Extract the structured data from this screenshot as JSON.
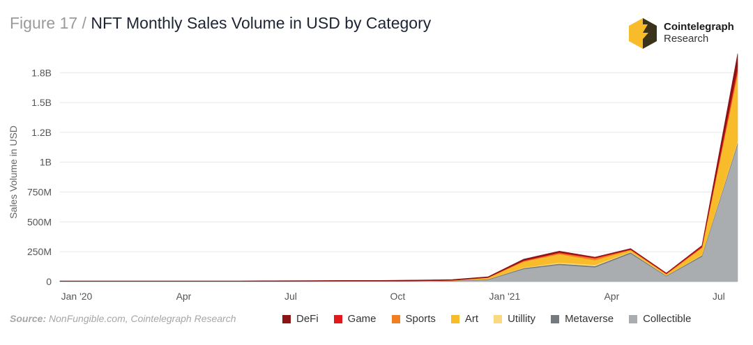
{
  "title": {
    "prefix": "Figure 17 / ",
    "text": "NFT Monthly Sales Volume in USD by Category"
  },
  "brand": {
    "name": "Cointelegraph",
    "sub": "Research"
  },
  "source": {
    "label": "Source:",
    "text": " NonFungible.com, Cointelegraph Research"
  },
  "colors": {
    "DeFi": "#8b1414",
    "Game": "#e3181d",
    "Sports": "#f07f24",
    "Art": "#f8bb2a",
    "Utility": "#fbd981",
    "Metaverse": "#737b80",
    "Collectible": "#a9adb0"
  },
  "chart_data": {
    "type": "area",
    "stacked": true,
    "ylabel": "Sales Volume in USD",
    "ylim": [
      0,
      1950000000
    ],
    "yticks": [
      0,
      250000000,
      500000000,
      750000000,
      1000000000,
      1250000000,
      1500000000,
      1750000000
    ],
    "ytick_labels": [
      "0",
      "250M",
      "500M",
      "750M",
      "1B",
      "1.2B",
      "1.5B",
      "1.8B"
    ],
    "x": [
      "2020-01",
      "2020-02",
      "2020-03",
      "2020-04",
      "2020-05",
      "2020-06",
      "2020-07",
      "2020-08",
      "2020-09",
      "2020-10",
      "2020-11",
      "2020-12",
      "2021-01",
      "2021-02",
      "2021-03",
      "2021-04",
      "2021-05",
      "2021-06",
      "2021-07",
      "2021-08"
    ],
    "xticks": [
      {
        "x": "2020-01",
        "label": "Jan '20"
      },
      {
        "x": "2020-04",
        "label": "Apr"
      },
      {
        "x": "2020-07",
        "label": "Jul"
      },
      {
        "x": "2020-10",
        "label": "Oct"
      },
      {
        "x": "2021-01",
        "label": "Jan '21"
      },
      {
        "x": "2021-04",
        "label": "Apr"
      },
      {
        "x": "2021-07",
        "label": "Jul"
      }
    ],
    "grid": true,
    "legend": "bottom",
    "series": [
      {
        "name": "Collectible",
        "values": [
          1000000,
          1000000,
          1000000,
          1000000,
          1000000,
          1000000,
          1000000,
          1000000,
          2000000,
          2000000,
          3000000,
          5000000,
          15000000,
          105000000,
          140000000,
          120000000,
          235000000,
          45000000,
          210000000,
          1150000000
        ]
      },
      {
        "name": "Metaverse",
        "values": [
          1000000,
          1000000,
          1000000,
          1000000,
          1000000,
          1000000,
          1000000,
          2000000,
          2000000,
          2000000,
          2000000,
          3000000,
          5000000,
          8000000,
          10000000,
          10000000,
          10000000,
          5000000,
          10000000,
          15000000
        ]
      },
      {
        "name": "Utillity",
        "values": [
          0,
          0,
          0,
          0,
          0,
          0,
          0,
          0,
          0,
          0,
          0,
          0,
          2000000,
          5000000,
          10000000,
          10000000,
          5000000,
          3000000,
          5000000,
          15000000
        ]
      },
      {
        "name": "Art",
        "values": [
          0,
          0,
          0,
          0,
          0,
          0,
          0,
          0,
          0,
          0,
          1000000,
          2000000,
          10000000,
          50000000,
          70000000,
          40000000,
          15000000,
          10000000,
          60000000,
          560000000
        ]
      },
      {
        "name": "Sports",
        "values": [
          0,
          0,
          0,
          0,
          0,
          0,
          0,
          0,
          0,
          0,
          0,
          0,
          1000000,
          5000000,
          10000000,
          15000000,
          2000000,
          1000000,
          2000000,
          30000000
        ]
      },
      {
        "name": "Game",
        "values": [
          1000000,
          1000000,
          1000000,
          1000000,
          1000000,
          1000000,
          1000000,
          1000000,
          1000000,
          1000000,
          1000000,
          1000000,
          2000000,
          5000000,
          5000000,
          5000000,
          5000000,
          5000000,
          10000000,
          40000000
        ]
      },
      {
        "name": "DeFi",
        "values": [
          2000000,
          2000000,
          2000000,
          2000000,
          3000000,
          3000000,
          4000000,
          4000000,
          5000000,
          5000000,
          6000000,
          6000000,
          5000000,
          10000000,
          10000000,
          5000000,
          5000000,
          3000000,
          5000000,
          100000000
        ]
      }
    ]
  },
  "legend_order": [
    "DeFi",
    "Game",
    "Sports",
    "Art",
    "Utillity",
    "Metaverse",
    "Collectible"
  ]
}
